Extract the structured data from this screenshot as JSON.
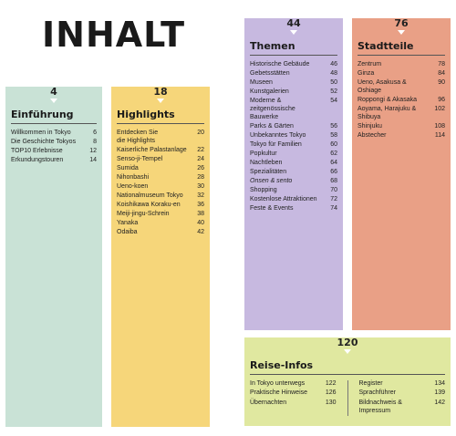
{
  "page_title": "INHALT",
  "colors": {
    "einfuehrung": "#c9e2d6",
    "highlights": "#f6d67a",
    "themen": "#c7b9e0",
    "stadtteile": "#e9a086",
    "reise_infos": "#e0e8a0"
  },
  "einfuehrung": {
    "number": "4",
    "title": "Einführung",
    "entries": [
      {
        "label": "Willkommen in Tokyo",
        "page": "6"
      },
      {
        "label": "Die Geschichte Tokyos",
        "page": "8"
      },
      {
        "label": "TOP10 Erlebnisse",
        "page": "12"
      },
      {
        "label": "Erkundungstouren",
        "page": "14"
      }
    ]
  },
  "highlights": {
    "number": "18",
    "title": "Highlights",
    "entries": [
      {
        "label": "Entdecken Sie\ndie Highlights",
        "page": "20"
      },
      {
        "label": "Kaiserliche Palastanlage",
        "page": "22"
      },
      {
        "label": "Senso-ji-Tempel",
        "page": "24"
      },
      {
        "label": "Sumida",
        "page": "26"
      },
      {
        "label": "Nihonbashi",
        "page": "28"
      },
      {
        "label": "Ueno-koen",
        "page": "30"
      },
      {
        "label": "Nationalmuseum Tokyo",
        "page": "32"
      },
      {
        "label": "Koishikawa Koraku-en",
        "page": "36"
      },
      {
        "label": "Meiji-jingu-Schrein",
        "page": "38"
      },
      {
        "label": "Yanaka",
        "page": "40"
      },
      {
        "label": "Odaiba",
        "page": "42"
      }
    ]
  },
  "themen": {
    "number": "44",
    "title": "Themen",
    "entries": [
      {
        "label": "Historische Gebäude",
        "page": "46"
      },
      {
        "label": "Gebetsstätten",
        "page": "48"
      },
      {
        "label": "Museen",
        "page": "50"
      },
      {
        "label": "Kunstgalerien",
        "page": "52"
      },
      {
        "label": "Moderne & zeitgenössische\nBauwerke",
        "page": "54"
      },
      {
        "label": "Parks & Gärten",
        "page": "56"
      },
      {
        "label": "Unbekanntes Tokyo",
        "page": "58"
      },
      {
        "label": "Tokyo für Familien",
        "page": "60"
      },
      {
        "label": "Popkultur",
        "page": "62"
      },
      {
        "label": "Nachtleben",
        "page": "64"
      },
      {
        "label": "Spezialitäten",
        "page": "66"
      },
      {
        "label": "Onsen & sento",
        "page": "68",
        "italic": true
      },
      {
        "label": "Shopping",
        "page": "70"
      },
      {
        "label": "Kostenlose Attraktionen",
        "page": "72"
      },
      {
        "label": "Feste & Events",
        "page": "74"
      }
    ]
  },
  "stadtteile": {
    "number": "76",
    "title": "Stadtteile",
    "entries": [
      {
        "label": "Zentrum",
        "page": "78"
      },
      {
        "label": "Ginza",
        "page": "84"
      },
      {
        "label": "Ueno, Asakusa &\nOshiage",
        "page": "90"
      },
      {
        "label": "Roppongi & Akasaka",
        "page": "96"
      },
      {
        "label": "Aoyama, Harajuku &\nShibuya",
        "page": "102"
      },
      {
        "label": "Shinjuku",
        "page": "108"
      },
      {
        "label": "Abstecher",
        "page": "114"
      }
    ]
  },
  "reise_infos": {
    "number": "120",
    "title": "Reise-Infos",
    "col1": [
      {
        "label": "In Tokyo unterwegs",
        "page": "122"
      },
      {
        "label": "Praktische Hinweise",
        "page": "126"
      },
      {
        "label": "Übernachten",
        "page": "130"
      }
    ],
    "col2": [
      {
        "label": "Register",
        "page": "134"
      },
      {
        "label": "Sprachführer",
        "page": "139"
      },
      {
        "label": "Bildnachweis & Impressum",
        "page": "142"
      }
    ]
  }
}
